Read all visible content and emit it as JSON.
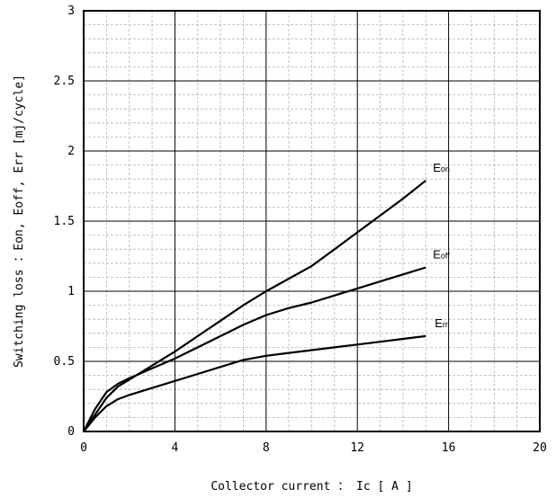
{
  "chart_data": {
    "type": "line",
    "xlabel": "Collector current ： Ic [ A ]",
    "ylabel": "Switching loss ：Eon, Eoff, Err [mj/cycle]",
    "xlim": [
      0,
      20
    ],
    "ylim": [
      0,
      3
    ],
    "x_ticks": [
      "0",
      "4",
      "8",
      "12",
      "16",
      "20"
    ],
    "y_ticks": [
      "0",
      "0.5",
      "1",
      "1.5",
      "2",
      "2.5",
      "3"
    ],
    "grid": true,
    "series": [
      {
        "name": "Eon",
        "label_main": "E",
        "label_sub": "on",
        "x": [
          0,
          0.5,
          1,
          1.5,
          2,
          3,
          4,
          5,
          6,
          7,
          8,
          9,
          10,
          11,
          12,
          13,
          14,
          15
        ],
        "y": [
          0,
          0.12,
          0.24,
          0.32,
          0.37,
          0.47,
          0.57,
          0.68,
          0.79,
          0.9,
          1.0,
          1.09,
          1.18,
          1.3,
          1.42,
          1.54,
          1.66,
          1.79
        ]
      },
      {
        "name": "Eoff",
        "label_main": "E",
        "label_sub": "off",
        "x": [
          0,
          0.5,
          1,
          1.5,
          2,
          3,
          4,
          5,
          6,
          7,
          8,
          9,
          10,
          11,
          12,
          13,
          14,
          15
        ],
        "y": [
          0,
          0.16,
          0.28,
          0.34,
          0.38,
          0.45,
          0.52,
          0.6,
          0.68,
          0.76,
          0.83,
          0.88,
          0.92,
          0.97,
          1.02,
          1.07,
          1.12,
          1.17
        ]
      },
      {
        "name": "Err",
        "label_main": "E",
        "label_sub": "rr",
        "x": [
          0,
          0.5,
          1,
          1.5,
          2,
          3,
          4,
          5,
          6,
          7,
          8,
          9,
          10,
          11,
          12,
          13,
          14,
          15
        ],
        "y": [
          0,
          0.1,
          0.18,
          0.23,
          0.26,
          0.31,
          0.36,
          0.41,
          0.46,
          0.51,
          0.54,
          0.56,
          0.58,
          0.6,
          0.62,
          0.64,
          0.66,
          0.68
        ]
      }
    ]
  }
}
